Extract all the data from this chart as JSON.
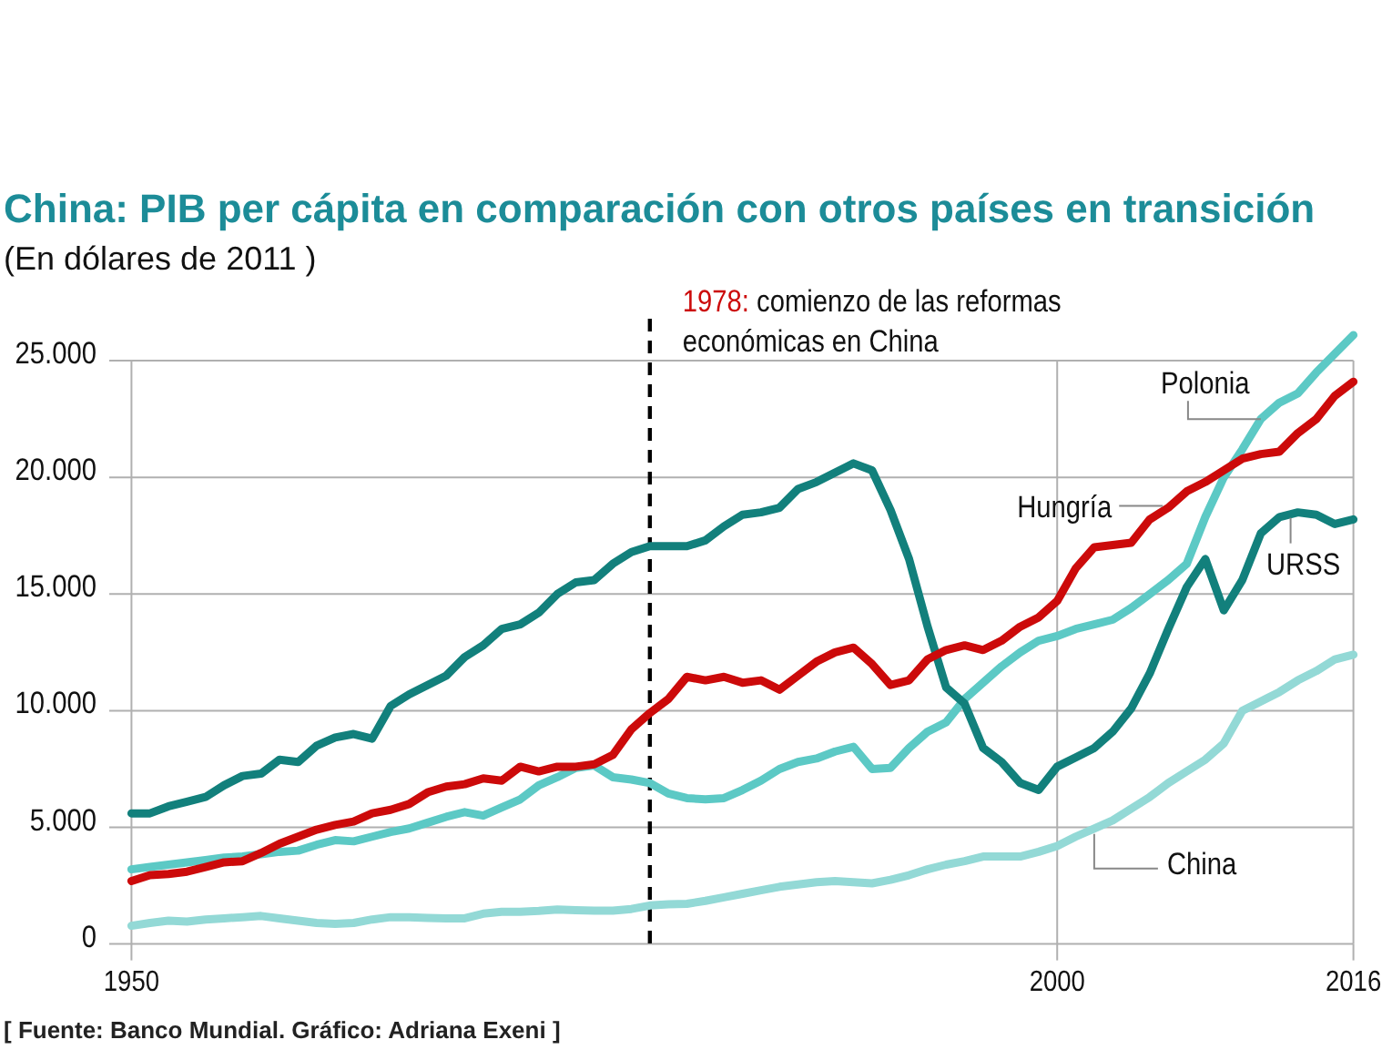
{
  "chart_data": {
    "type": "line",
    "title": "China: PIB per cápita en comparación con otros países en transición",
    "subtitle": "(En dólares de 2011 )",
    "x": [
      1950,
      1951,
      1952,
      1953,
      1954,
      1955,
      1956,
      1957,
      1958,
      1959,
      1960,
      1961,
      1962,
      1963,
      1964,
      1965,
      1966,
      1967,
      1968,
      1969,
      1970,
      1971,
      1972,
      1973,
      1974,
      1975,
      1976,
      1977,
      1978,
      1979,
      1980,
      1981,
      1982,
      1983,
      1984,
      1985,
      1986,
      1987,
      1988,
      1989,
      1990,
      1991,
      1992,
      1993,
      1994,
      1995,
      1996,
      1997,
      1998,
      1999,
      2000,
      2001,
      2002,
      2003,
      2004,
      2005,
      2006,
      2007,
      2008,
      2009,
      2010,
      2011,
      2012,
      2013,
      2014,
      2015,
      2016
    ],
    "series": [
      {
        "name": "China",
        "color": "#93d9d6",
        "values": [
          780,
          900,
          1000,
          960,
          1050,
          1100,
          1150,
          1200,
          1100,
          1000,
          900,
          860,
          900,
          1050,
          1150,
          1150,
          1120,
          1100,
          1100,
          1300,
          1380,
          1380,
          1420,
          1480,
          1450,
          1430,
          1430,
          1500,
          1650,
          1700,
          1720,
          1850,
          2000,
          2150,
          2300,
          2450,
          2550,
          2650,
          2700,
          2650,
          2600,
          2750,
          2950,
          3200,
          3400,
          3550,
          3750,
          3750,
          3750,
          3950,
          4200,
          4600,
          4950,
          5300,
          5800,
          6300,
          6900,
          7400,
          7900,
          8600,
          10000,
          10400,
          10800,
          11300,
          11700,
          12200,
          12400
        ]
      },
      {
        "name": "Polonia",
        "color": "#5cc9c5",
        "values": [
          3200,
          3300,
          3400,
          3500,
          3600,
          3700,
          3750,
          3850,
          3950,
          4000,
          4250,
          4450,
          4400,
          4600,
          4800,
          4950,
          5200,
          5450,
          5650,
          5500,
          5850,
          6200,
          6800,
          7150,
          7550,
          7650,
          7150,
          7050,
          6900,
          6450,
          6250,
          6200,
          6250,
          6600,
          7000,
          7500,
          7800,
          7950,
          8250,
          8450,
          7500,
          7550,
          8400,
          9100,
          9500,
          10500,
          11200,
          11900,
          12500,
          13000,
          13200,
          13500,
          13700,
          13900,
          14400,
          15000,
          15600,
          16300,
          18300,
          20000,
          21200,
          22500,
          23200,
          23600,
          24500,
          25300,
          26100
        ]
      },
      {
        "name": "URSS",
        "color": "#12807c",
        "values": [
          5600,
          5600,
          5900,
          6100,
          6300,
          6800,
          7200,
          7300,
          7900,
          7800,
          8500,
          8850,
          9000,
          8800,
          10200,
          10700,
          11100,
          11500,
          12300,
          12800,
          13500,
          13700,
          14200,
          15000,
          15500,
          15600,
          16300,
          16800,
          17050,
          17050,
          17050,
          17300,
          17900,
          18400,
          18500,
          18700,
          19500,
          19800,
          20200,
          20600,
          20300,
          18600,
          16500,
          13600,
          11000,
          10300,
          8400,
          7800,
          6900,
          6600,
          7600,
          8000,
          8400,
          9100,
          10100,
          11600,
          13500,
          15300,
          16500,
          14300,
          15600,
          17600,
          18300,
          18500,
          18400,
          18000,
          18200
        ]
      },
      {
        "name": "Hungría",
        "color": "#cc0a0a",
        "values": [
          2700,
          2950,
          3000,
          3100,
          3300,
          3500,
          3550,
          3900,
          4300,
          4600,
          4900,
          5100,
          5250,
          5600,
          5750,
          6000,
          6500,
          6750,
          6850,
          7100,
          7000,
          7600,
          7400,
          7600,
          7600,
          7700,
          8100,
          9200,
          9900,
          10500,
          11450,
          11300,
          11450,
          11200,
          11300,
          10900,
          11500,
          12100,
          12500,
          12700,
          12000,
          11100,
          11300,
          12200,
          12600,
          12800,
          12600,
          13000,
          13600,
          14000,
          14700,
          16100,
          17000,
          17100,
          17200,
          18200,
          18700,
          19400,
          19800,
          20300,
          20800,
          21000,
          21100,
          21900,
          22500,
          23500,
          24100
        ]
      }
    ],
    "xlim": [
      1948.8,
      2016
    ],
    "xticks": [
      1950,
      2000,
      2016
    ],
    "ylim": [
      0,
      26800
    ],
    "yticks": [
      0,
      {
        "value": 5000,
        "label": "5.000"
      },
      {
        "value": 10000,
        "label": "10.000"
      },
      {
        "value": 15000,
        "label": "15.000"
      },
      {
        "value": 20000,
        "label": "20.000"
      },
      {
        "value": 25000,
        "label": "25.000"
      }
    ],
    "grid": true,
    "ref_lines": [
      {
        "axis": "x",
        "value": 1978,
        "label": "1978: comienzo de las reformas económicas en China",
        "color": "#000000",
        "line_style": "dashed"
      }
    ],
    "annotations": [
      "[ Fuente: Banco Mundial. Gráfico: Adriana Exeni ]"
    ]
  }
}
